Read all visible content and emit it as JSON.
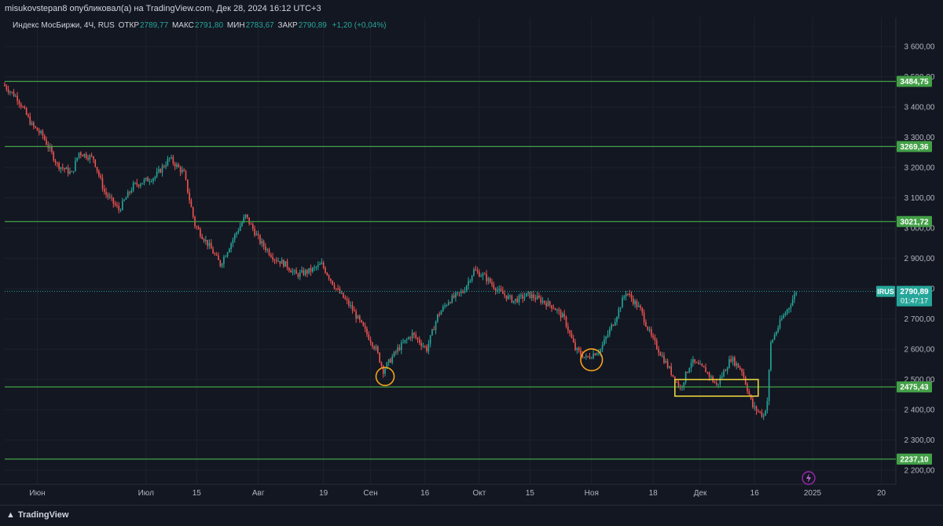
{
  "header": {
    "published_text": "misukovstepan8 опубликовал(а) на TradingView.com, Дек 28, 2024 16:12 UTC+3"
  },
  "legend": {
    "symbol": "Индекс МосБиржи, 4Ч, RUS",
    "open_label": "ОТКР",
    "open_value": "2789,77",
    "high_label": "МАКС",
    "high_value": "2791,80",
    "low_label": "МИН",
    "low_value": "2783,67",
    "close_label": "ЗАКР",
    "close_value": "2790,89",
    "change": "+1,20 (+0,04%)"
  },
  "footer": {
    "brand": "TradingView"
  },
  "colors": {
    "background": "#131722",
    "up": "#26a69a",
    "down": "#ef5350",
    "level_line": "#43a047",
    "price_badge": "#26a69a",
    "circle": "#f7a21b",
    "box": "#e8d23a"
  },
  "chart_data": {
    "type": "candlestick",
    "ylim": [
      2190,
      3660
    ],
    "y_ticks": [
      {
        "value": 3600,
        "label": "3 600,00"
      },
      {
        "value": 3500,
        "label": "3 500,00"
      },
      {
        "value": 3400,
        "label": "3 400,00"
      },
      {
        "value": 3300,
        "label": "3 300,00"
      },
      {
        "value": 3200,
        "label": "3 200,00"
      },
      {
        "value": 3100,
        "label": "3 100,00"
      },
      {
        "value": 3000,
        "label": "3 000,00"
      },
      {
        "value": 2900,
        "label": "2 900,00"
      },
      {
        "value": 2800,
        "label": "2 800,00"
      },
      {
        "value": 2700,
        "label": "2 700,00"
      },
      {
        "value": 2600,
        "label": "2 600,00"
      },
      {
        "value": 2500,
        "label": "2 500,00"
      },
      {
        "value": 2400,
        "label": "2 400,00"
      },
      {
        "value": 2300,
        "label": "2 300,00"
      },
      {
        "value": 2200,
        "label": "2 200,00"
      }
    ],
    "x_ticks": [
      {
        "label": "Июн",
        "date": "2024-06-01"
      },
      {
        "label": "Июл",
        "date": "2024-07-01"
      },
      {
        "label": "15",
        "date": "2024-07-15"
      },
      {
        "label": "Авг",
        "date": "2024-08-01"
      },
      {
        "label": "19",
        "date": "2024-08-19"
      },
      {
        "label": "Сен",
        "date": "2024-09-01"
      },
      {
        "label": "16",
        "date": "2024-09-16"
      },
      {
        "label": "Окт",
        "date": "2024-10-01"
      },
      {
        "label": "15",
        "date": "2024-10-15"
      },
      {
        "label": "Ноя",
        "date": "2024-11-01"
      },
      {
        "label": "18",
        "date": "2024-11-18"
      },
      {
        "label": "Дек",
        "date": "2024-12-01"
      },
      {
        "label": "16",
        "date": "2024-12-16"
      },
      {
        "label": "2025",
        "date": "2025-01-01"
      },
      {
        "label": "20",
        "date": "2025-01-20"
      }
    ],
    "x_range": [
      "2024-05-23",
      "2025-01-24"
    ],
    "levels": [
      {
        "value": 3484.75,
        "label": "3484,75"
      },
      {
        "value": 3269.36,
        "label": "3269,36"
      },
      {
        "value": 3021.72,
        "label": "3021,72"
      },
      {
        "value": 2475.43,
        "label": "2475,43"
      },
      {
        "value": 2237.1,
        "label": "2237,10"
      }
    ],
    "last_price": {
      "value": 2790.89,
      "label": "2790,89",
      "symbol": "IRUS",
      "countdown": "01:47:17"
    },
    "price_path": [
      [
        "2024-05-23",
        3475
      ],
      [
        "2024-05-27",
        3430
      ],
      [
        "2024-05-31",
        3340
      ],
      [
        "2024-06-03",
        3305
      ],
      [
        "2024-06-07",
        3210
      ],
      [
        "2024-06-11",
        3180
      ],
      [
        "2024-06-13",
        3250
      ],
      [
        "2024-06-17",
        3230
      ],
      [
        "2024-06-20",
        3120
      ],
      [
        "2024-06-24",
        3060
      ],
      [
        "2024-06-28",
        3140
      ],
      [
        "2024-07-04",
        3170
      ],
      [
        "2024-07-08",
        3230
      ],
      [
        "2024-07-12",
        3180
      ],
      [
        "2024-07-15",
        3010
      ],
      [
        "2024-07-19",
        2940
      ],
      [
        "2024-07-22",
        2880
      ],
      [
        "2024-07-26",
        2975
      ],
      [
        "2024-07-29",
        3040
      ],
      [
        "2024-08-02",
        2955
      ],
      [
        "2024-08-06",
        2900
      ],
      [
        "2024-08-09",
        2880
      ],
      [
        "2024-08-12",
        2845
      ],
      [
        "2024-08-16",
        2860
      ],
      [
        "2024-08-19",
        2880
      ],
      [
        "2024-08-23",
        2800
      ],
      [
        "2024-08-27",
        2740
      ],
      [
        "2024-08-30",
        2680
      ],
      [
        "2024-09-03",
        2600
      ],
      [
        "2024-09-05",
        2530
      ],
      [
        "2024-09-09",
        2600
      ],
      [
        "2024-09-13",
        2650
      ],
      [
        "2024-09-17",
        2600
      ],
      [
        "2024-09-20",
        2710
      ],
      [
        "2024-09-23",
        2760
      ],
      [
        "2024-09-27",
        2790
      ],
      [
        "2024-09-30",
        2860
      ],
      [
        "2024-10-03",
        2840
      ],
      [
        "2024-10-07",
        2790
      ],
      [
        "2024-10-11",
        2760
      ],
      [
        "2024-10-15",
        2780
      ],
      [
        "2024-10-18",
        2765
      ],
      [
        "2024-10-22",
        2740
      ],
      [
        "2024-10-25",
        2700
      ],
      [
        "2024-10-28",
        2600
      ],
      [
        "2024-10-31",
        2570
      ],
      [
        "2024-11-04",
        2600
      ],
      [
        "2024-11-08",
        2700
      ],
      [
        "2024-11-11",
        2790
      ],
      [
        "2024-11-15",
        2730
      ],
      [
        "2024-11-18",
        2640
      ],
      [
        "2024-11-22",
        2555
      ],
      [
        "2024-11-26",
        2470
      ],
      [
        "2024-11-29",
        2560
      ],
      [
        "2024-12-03",
        2530
      ],
      [
        "2024-12-06",
        2480
      ],
      [
        "2024-12-10",
        2570
      ],
      [
        "2024-12-13",
        2530
      ],
      [
        "2024-12-16",
        2410
      ],
      [
        "2024-12-19",
        2380
      ],
      [
        "2024-12-20",
        2430
      ],
      [
        "2024-12-21",
        2620
      ],
      [
        "2024-12-24",
        2700
      ],
      [
        "2024-12-26",
        2740
      ],
      [
        "2024-12-28",
        2791
      ]
    ],
    "annotations": [
      {
        "type": "circle",
        "center": [
          "2024-09-05",
          2510
        ],
        "radius_days": 2.5
      },
      {
        "type": "circle",
        "center": [
          "2024-11-01",
          2565
        ],
        "radius_days": 3
      },
      {
        "type": "rectangle",
        "from": [
          "2024-11-24",
          2500
        ],
        "to": [
          "2024-12-17",
          2445
        ]
      }
    ]
  }
}
